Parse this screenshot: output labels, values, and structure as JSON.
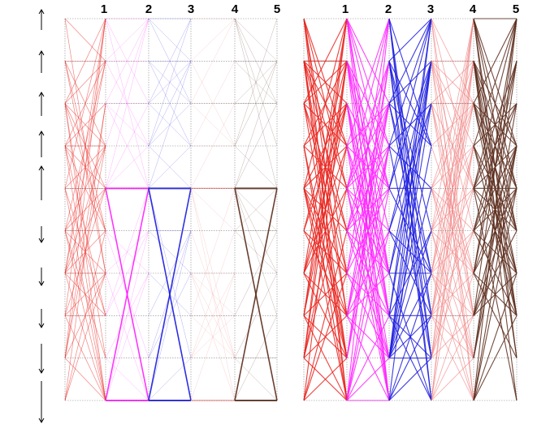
{
  "figure": {
    "panels": [
      {
        "id": "left",
        "axis_labels": [
          "1",
          "2",
          "3",
          "4",
          "5"
        ],
        "arrows": [
          "up",
          "up",
          "up",
          "up",
          "up",
          "down",
          "down",
          "down",
          "down",
          "down"
        ]
      },
      {
        "id": "right",
        "axis_labels": [
          "1",
          "2",
          "3",
          "4",
          "5"
        ]
      }
    ],
    "colors": {
      "axis_1": "#e8201a",
      "axis_2": "#ff20ff",
      "axis_3": "#1a1ae0",
      "axis_4": "#f08080",
      "axis_5": "#5a2a1a",
      "grid": "#555555",
      "arrow": "#000000"
    }
  }
}
